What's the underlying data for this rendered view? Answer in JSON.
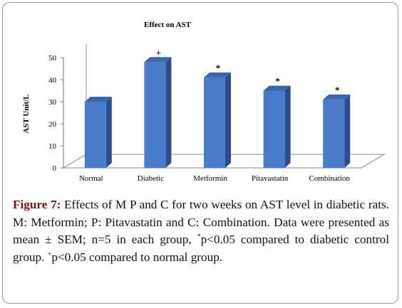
{
  "chart_data": {
    "type": "bar",
    "title": "Effect on AST",
    "ylabel": "AST Unit/L",
    "xlabel": "",
    "ylim": [
      0,
      50
    ],
    "yticks": [
      0,
      10,
      20,
      30,
      40,
      50
    ],
    "categories": [
      "Normal",
      "Diabetic",
      "Metformin",
      "Pitavastatin",
      "Combination"
    ],
    "values": [
      30,
      48,
      41,
      35,
      31
    ],
    "annotations": [
      "",
      "+",
      "*",
      "*",
      "*"
    ],
    "bar_color": "#4a7bc8",
    "bar_top_color": "#3a66ad",
    "bar_side_color": "#2a4f8c",
    "grid": false,
    "legend": "none"
  },
  "caption": {
    "figure_label": "Figure 7:",
    "text_1": " Effects of M P and C for two weeks on AST level in diabetic rats. M: Metformin; P: Pitavastatin and C: Combination. Data were presented as mean ± SEM; n=5 in each group, ",
    "sup_1": "*",
    "text_2": "p<0.05 compared to diabetic control group. ",
    "sup_2": "+",
    "text_3": "p<0.05 compared to normal group."
  }
}
